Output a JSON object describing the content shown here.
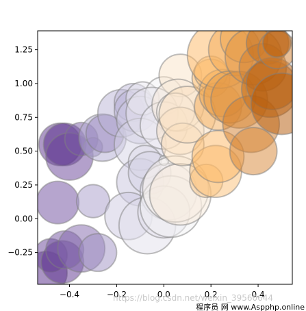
{
  "chart_data": {
    "type": "scatter",
    "title": "",
    "xlabel": "",
    "ylabel": "",
    "xlim": [
      -0.535,
      0.545
    ],
    "ylim": [
      -0.485,
      1.39
    ],
    "x_ticks": [
      -0.4,
      -0.2,
      0.0,
      0.2,
      0.4
    ],
    "y_ticks": [
      -0.25,
      0.0,
      0.25,
      0.5,
      0.75,
      1.0,
      1.25
    ],
    "x_tick_labels": [
      "−0.4",
      "−0.2",
      "0.0",
      "0.2",
      "0.4"
    ],
    "y_tick_labels": [
      "−0.25",
      "0.00",
      "0.25",
      "0.50",
      "0.75",
      "1.00",
      "1.25"
    ],
    "grid": false,
    "legend": "none",
    "colormap": "PuOr_r",
    "marker_alpha": 0.5,
    "marker_edgecolor": "#808080",
    "points": [
      {
        "x": -0.5,
        "y": -0.4,
        "size": 0.09,
        "c": 0.0
      },
      {
        "x": -0.48,
        "y": -0.27,
        "size": 0.07,
        "c": 0.05
      },
      {
        "x": -0.43,
        "y": -0.32,
        "size": 0.09,
        "c": 0.02
      },
      {
        "x": -0.42,
        "y": -0.23,
        "size": 0.08,
        "c": 0.08
      },
      {
        "x": -0.35,
        "y": -0.22,
        "size": 0.1,
        "c": 0.12
      },
      {
        "x": -0.28,
        "y": -0.25,
        "size": 0.08,
        "c": 0.2
      },
      {
        "x": -0.45,
        "y": 0.12,
        "size": 0.09,
        "c": 0.07
      },
      {
        "x": -0.3,
        "y": 0.13,
        "size": 0.07,
        "c": 0.22
      },
      {
        "x": -0.44,
        "y": 0.55,
        "size": 0.09,
        "c": 0.02
      },
      {
        "x": -0.42,
        "y": 0.55,
        "size": 0.09,
        "c": 0.0
      },
      {
        "x": -0.4,
        "y": 0.46,
        "size": 0.1,
        "c": 0.05
      },
      {
        "x": -0.35,
        "y": 0.59,
        "size": 0.07,
        "c": 0.1
      },
      {
        "x": -0.3,
        "y": 0.53,
        "size": 0.04,
        "c": 0.15
      },
      {
        "x": -0.26,
        "y": 0.6,
        "size": 0.1,
        "c": 0.25
      },
      {
        "x": -0.25,
        "y": 0.63,
        "size": 0.08,
        "c": 0.18
      },
      {
        "x": -0.18,
        "y": 0.78,
        "size": 0.1,
        "c": 0.28
      },
      {
        "x": -0.13,
        "y": 0.86,
        "size": 0.08,
        "c": 0.3
      },
      {
        "x": -0.12,
        "y": 0.8,
        "size": 0.09,
        "c": 0.27
      },
      {
        "x": -0.1,
        "y": 0.73,
        "size": 0.1,
        "c": 0.35
      },
      {
        "x": -0.1,
        "y": 0.55,
        "size": 0.11,
        "c": 0.38
      },
      {
        "x": -0.1,
        "y": 0.27,
        "size": 0.1,
        "c": 0.33
      },
      {
        "x": -0.15,
        "y": 0.02,
        "size": 0.1,
        "c": 0.35
      },
      {
        "x": -0.07,
        "y": -0.05,
        "size": 0.12,
        "c": 0.42
      },
      {
        "x": -0.08,
        "y": 0.42,
        "size": 0.07,
        "c": 0.4
      },
      {
        "x": -0.06,
        "y": 0.34,
        "size": 0.09,
        "c": 0.38
      },
      {
        "x": -0.09,
        "y": 0.89,
        "size": 0.07,
        "c": 0.45
      },
      {
        "x": 0.0,
        "y": 0.91,
        "size": 0.08,
        "c": 0.48
      },
      {
        "x": -0.05,
        "y": 0.78,
        "size": 0.11,
        "c": 0.45
      },
      {
        "x": 0.0,
        "y": 0.69,
        "size": 0.1,
        "c": 0.47
      },
      {
        "x": 0.02,
        "y": 0.2,
        "size": 0.12,
        "c": 0.45
      },
      {
        "x": 0.0,
        "y": 0.05,
        "size": 0.11,
        "c": 0.43
      },
      {
        "x": 0.0,
        "y": 0.43,
        "size": 0.02,
        "c": 0.5
      },
      {
        "x": 0.03,
        "y": 0.09,
        "size": 0.13,
        "c": 0.48
      },
      {
        "x": 0.05,
        "y": 0.22,
        "size": 0.14,
        "c": 0.52
      },
      {
        "x": 0.07,
        "y": 0.18,
        "size": 0.13,
        "c": 0.55
      },
      {
        "x": 0.07,
        "y": 1.06,
        "size": 0.09,
        "c": 0.58
      },
      {
        "x": 0.06,
        "y": 0.84,
        "size": 0.11,
        "c": 0.55
      },
      {
        "x": 0.05,
        "y": 0.79,
        "size": 0.08,
        "c": 0.52
      },
      {
        "x": 0.07,
        "y": 0.65,
        "size": 0.1,
        "c": 0.58
      },
      {
        "x": 0.08,
        "y": 0.55,
        "size": 0.09,
        "c": 0.6
      },
      {
        "x": 0.1,
        "y": 0.77,
        "size": 0.12,
        "c": 0.6
      },
      {
        "x": 0.18,
        "y": 0.28,
        "size": 0.07,
        "c": 0.68
      },
      {
        "x": 0.22,
        "y": 0.35,
        "size": 0.11,
        "c": 0.72
      },
      {
        "x": 0.23,
        "y": 0.46,
        "size": 0.11,
        "c": 0.75
      },
      {
        "x": 0.2,
        "y": 1.04,
        "size": 0.08,
        "c": 0.73
      },
      {
        "x": 0.2,
        "y": 1.08,
        "size": 0.07,
        "c": 0.7
      },
      {
        "x": 0.23,
        "y": 0.83,
        "size": 0.1,
        "c": 0.78
      },
      {
        "x": 0.25,
        "y": 0.93,
        "size": 0.1,
        "c": 0.8
      },
      {
        "x": 0.24,
        "y": 1.21,
        "size": 0.14,
        "c": 0.75
      },
      {
        "x": 0.3,
        "y": 1.25,
        "size": 0.11,
        "c": 0.78
      },
      {
        "x": 0.28,
        "y": 0.9,
        "size": 0.11,
        "c": 0.82
      },
      {
        "x": 0.32,
        "y": 0.88,
        "size": 0.12,
        "c": 0.85
      },
      {
        "x": 0.34,
        "y": 1.33,
        "size": 0.1,
        "c": 0.8
      },
      {
        "x": 0.37,
        "y": 0.7,
        "size": 0.12,
        "c": 0.9
      },
      {
        "x": 0.38,
        "y": 0.5,
        "size": 0.1,
        "c": 0.88
      },
      {
        "x": 0.38,
        "y": 1.2,
        "size": 0.12,
        "c": 0.85
      },
      {
        "x": 0.42,
        "y": 1.12,
        "size": 0.1,
        "c": 0.9
      },
      {
        "x": 0.44,
        "y": 1.3,
        "size": 0.09,
        "c": 0.95
      },
      {
        "x": 0.45,
        "y": 0.96,
        "size": 0.12,
        "c": 0.95
      },
      {
        "x": 0.46,
        "y": 1.0,
        "size": 0.11,
        "c": 0.98
      },
      {
        "x": 0.48,
        "y": 1.25,
        "size": 0.08,
        "c": 0.9
      },
      {
        "x": 0.5,
        "y": 0.85,
        "size": 0.13,
        "c": 1.0
      },
      {
        "x": 0.48,
        "y": 1.3,
        "size": 0.06,
        "c": 1.0
      }
    ]
  },
  "watermark": {
    "url": "https://blog.csdn.net/weixin_39560644",
    "site": "程序员 网 www.Aspphp.online"
  }
}
